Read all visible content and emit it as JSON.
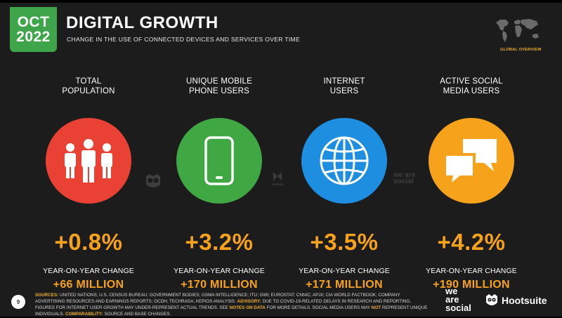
{
  "badge": {
    "month": "OCT",
    "year": "2022"
  },
  "title": "DIGITAL GROWTH",
  "subtitle": "CHANGE IN THE USE OF CONNECTED DEVICES AND SERVICES OVER TIME",
  "global_label": "GLOBAL OVERVIEW",
  "metrics": [
    {
      "label_line1": "TOTAL",
      "label_line2": "POPULATION",
      "icon": "people-icon",
      "color": "#e94235",
      "change_pct": "+0.8%",
      "change_label": "YEAR-ON-YEAR CHANGE",
      "change_abs": "+66 MILLION"
    },
    {
      "label_line1": "UNIQUE MOBILE",
      "label_line2": "PHONE USERS",
      "icon": "mobile-phone-icon",
      "color": "#40a843",
      "change_pct": "+3.2%",
      "change_label": "YEAR-ON-YEAR CHANGE",
      "change_abs": "+170 MILLION"
    },
    {
      "label_line1": "INTERNET",
      "label_line2": "USERS",
      "icon": "globe-icon",
      "color": "#1e8fe0",
      "change_pct": "+3.5%",
      "change_label": "YEAR-ON-YEAR CHANGE",
      "change_abs": "+171 MILLION"
    },
    {
      "label_line1": "ACTIVE SOCIAL",
      "label_line2": "MEDIA USERS",
      "icon": "chat-bubbles-icon",
      "color": "#f7a21b",
      "change_pct": "+4.2%",
      "change_label": "YEAR-ON-YEAR CHANGE",
      "change_abs": "+190 MILLION"
    }
  ],
  "watermarks": {
    "kepios": "KEPIOS",
    "was": "we are social"
  },
  "footer": {
    "sources_label": "SOURCES:",
    "sources_text": "UNITED NATIONS; U.S. CENSUS BUREAU; GOVERNMENT BODIES; GSMA INTELLIGENCE; ITU; GWI; EUROSTAT; CNNIC; APJII; CIA WORLD FACTBOOK; COMPANY ADVERTISING RESOURCES AND EARNINGS REPORTS; OCDH; TECHRASA; KEPIOS ANALYSIS.",
    "advisory_label": "ADVISORY:",
    "advisory_text": "DUE TO COVID-19-RELATED DELAYS IN RESEARCH AND REPORTING, FIGURES FOR INTERNET USER GROWTH MAY UNDER-REPRESENT ACTUAL TRENDS. SEE",
    "notes_label": "NOTES ON DATA",
    "notes_text": "FOR MORE DETAILS. SOCIAL MEDIA USERS MAY",
    "not_label": "NOT",
    "not_text": "REPRESENT UNIQUE INDIVIDUALS.",
    "comparability_label": "COMPARABILITY:",
    "comparability_text": "SOURCE AND BASE CHANGES."
  },
  "page_number": "9",
  "brand": {
    "was_line1": "we",
    "was_line2": "are",
    "was_line3": "social",
    "hootsuite": "Hootsuite"
  },
  "colors": {
    "background": "#1c1c1c",
    "accent": "#f7a21b",
    "badge": "#3fa54a"
  }
}
